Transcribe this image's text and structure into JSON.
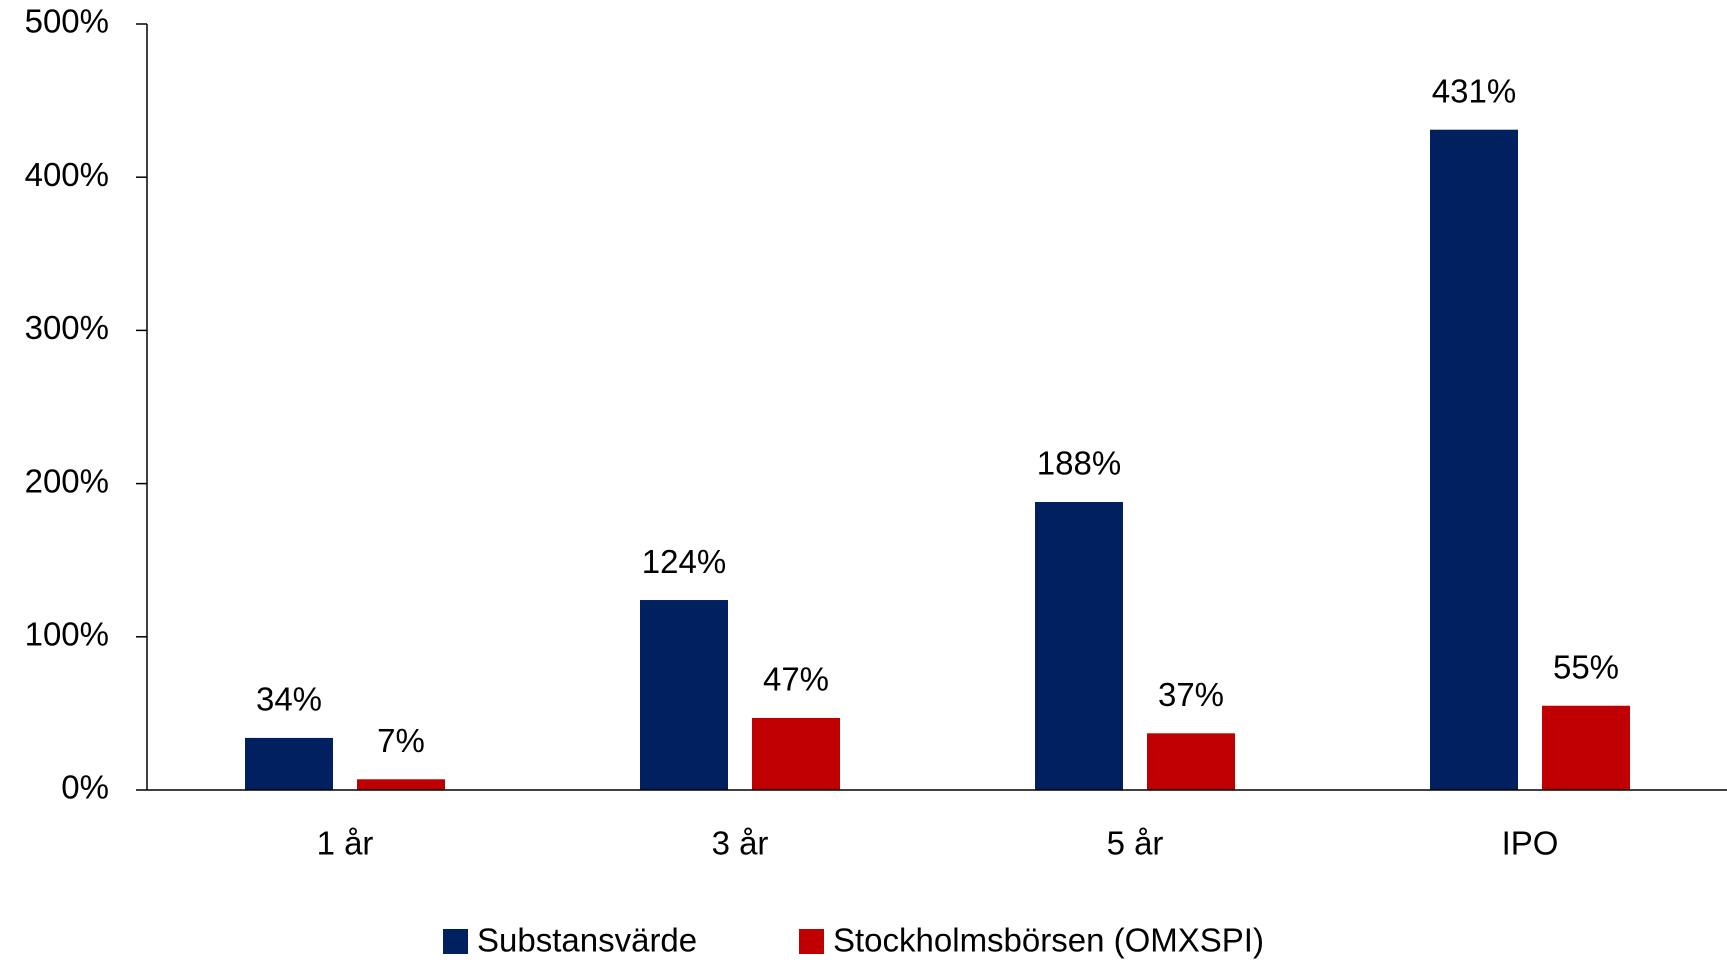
{
  "chart_data": {
    "type": "bar",
    "categories": [
      "1 år",
      "3 år",
      "5 år",
      "IPO"
    ],
    "series": [
      {
        "name": "Substansvärde",
        "color": "#002060",
        "values": [
          34,
          124,
          188,
          431
        ],
        "value_labels": [
          "34%",
          "124%",
          "188%",
          "431%"
        ]
      },
      {
        "name": "Stockholmsbörsen (OMXSPI)",
        "color": "#c00000",
        "values": [
          7,
          47,
          37,
          55
        ],
        "value_labels": [
          "7%",
          "47%",
          "37%",
          "55%"
        ]
      }
    ],
    "ylim": [
      0,
      500
    ],
    "yticks": [
      {
        "value": 0,
        "label": "0%"
      },
      {
        "value": 100,
        "label": "100%"
      },
      {
        "value": 200,
        "label": "200%"
      },
      {
        "value": 300,
        "label": "300%"
      },
      {
        "value": 400,
        "label": "400%"
      },
      {
        "value": 500,
        "label": "500%"
      }
    ],
    "grid": false,
    "legend": "bottom"
  }
}
